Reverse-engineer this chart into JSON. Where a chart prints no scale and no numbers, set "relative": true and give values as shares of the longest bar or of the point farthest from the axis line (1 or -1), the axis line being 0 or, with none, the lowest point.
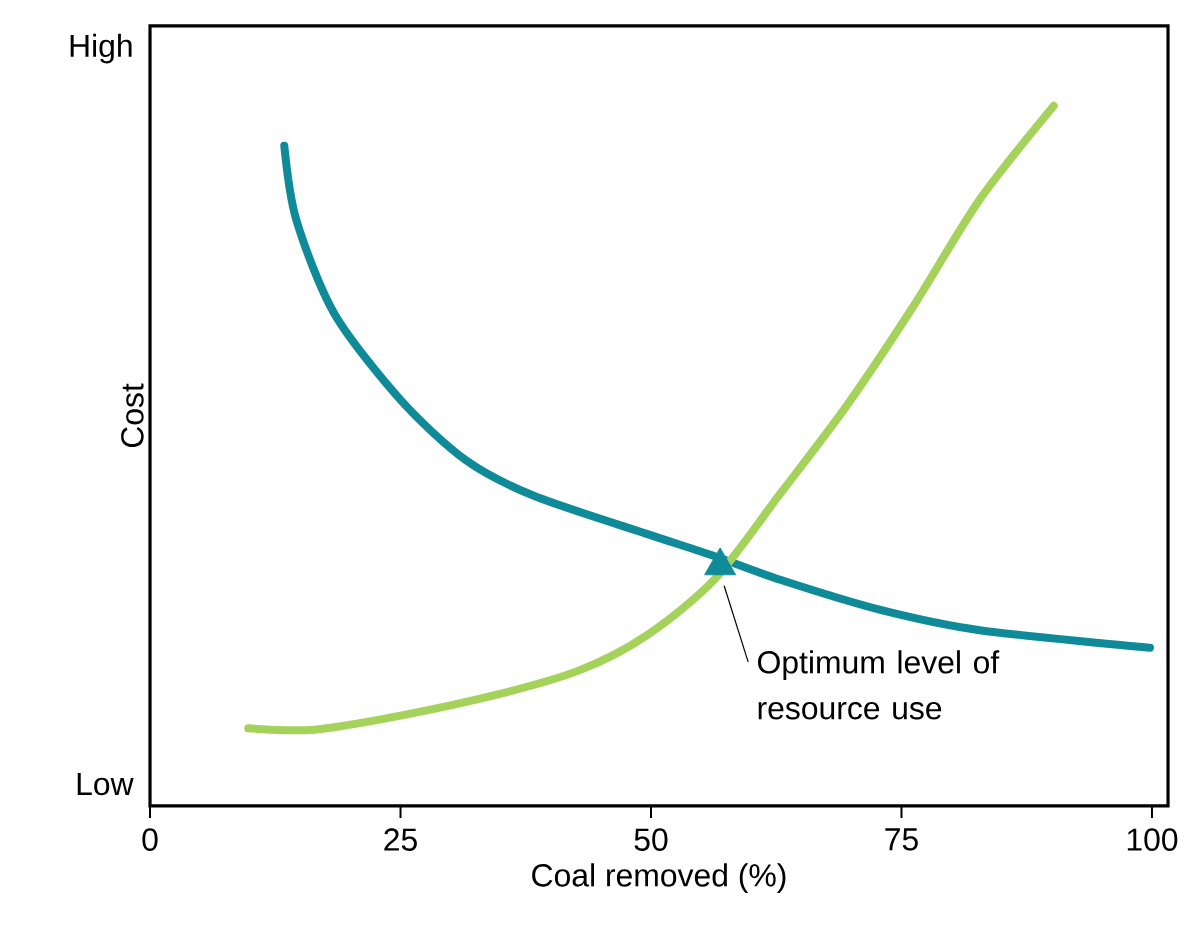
{
  "chart_data": {
    "type": "line",
    "xlabel": "Coal removed (%)",
    "ylabel": "Cost",
    "xlim": [
      0,
      101.6
    ],
    "xticks": [
      0,
      25,
      50,
      75,
      100
    ],
    "relative": true,
    "series": [
      {
        "color": "#0e8a99",
        "x": [
          13.4,
          14.6,
          18.4,
          25.0,
          31.5,
          38.3,
          49.5,
          56.3,
          62.9,
          72.9,
          82.8,
          99.8
        ],
        "values": [
          0.943,
          0.837,
          0.703,
          0.58,
          0.494,
          0.443,
          0.389,
          0.357,
          0.323,
          0.28,
          0.251,
          0.226
        ]
      },
      {
        "color": "#a5d25a",
        "x": [
          9.8,
          16.4,
          25.0,
          34.9,
          42.9,
          49.5,
          56.3,
          62.9,
          69.5,
          76.2,
          82.8,
          90.2
        ],
        "values": [
          0.111,
          0.109,
          0.129,
          0.16,
          0.194,
          0.243,
          0.323,
          0.446,
          0.571,
          0.714,
          0.866,
          1.0
        ]
      },
      {
        "type": "scatter",
        "marker": "triangle",
        "color": "#0e8a99",
        "x": [
          56.9
        ],
        "values": [
          0.343
        ]
      }
    ],
    "annotations": [
      "Low",
      "High",
      {
        "text": "Optimum level of resource use",
        "x": 56.9,
        "y": 0.343
      }
    ]
  }
}
